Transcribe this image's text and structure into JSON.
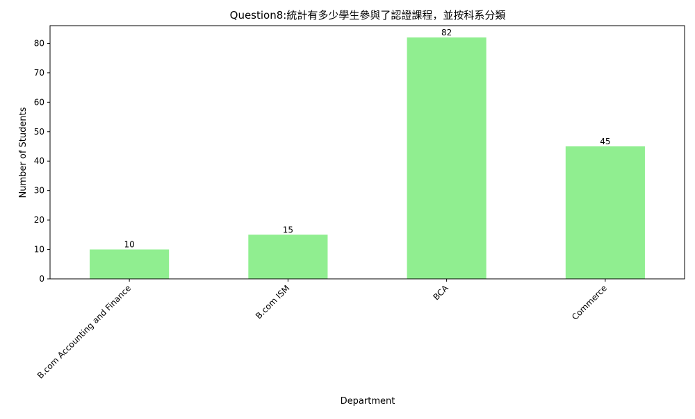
{
  "chart_data": {
    "type": "bar",
    "title": "Question8:統計有多少學生參與了認證課程，並按科系分類",
    "xlabel": "Department",
    "ylabel": "Number of Students",
    "categories": [
      "B.com Accounting and Finance",
      "B.com ISM",
      "BCA",
      "Commerce"
    ],
    "values": [
      10,
      15,
      82,
      45
    ],
    "ylim": [
      0,
      86
    ],
    "yticks": [
      0,
      10,
      20,
      30,
      40,
      50,
      60,
      70,
      80
    ],
    "bar_color": "#90ee90",
    "grid": false,
    "legend": "none"
  }
}
